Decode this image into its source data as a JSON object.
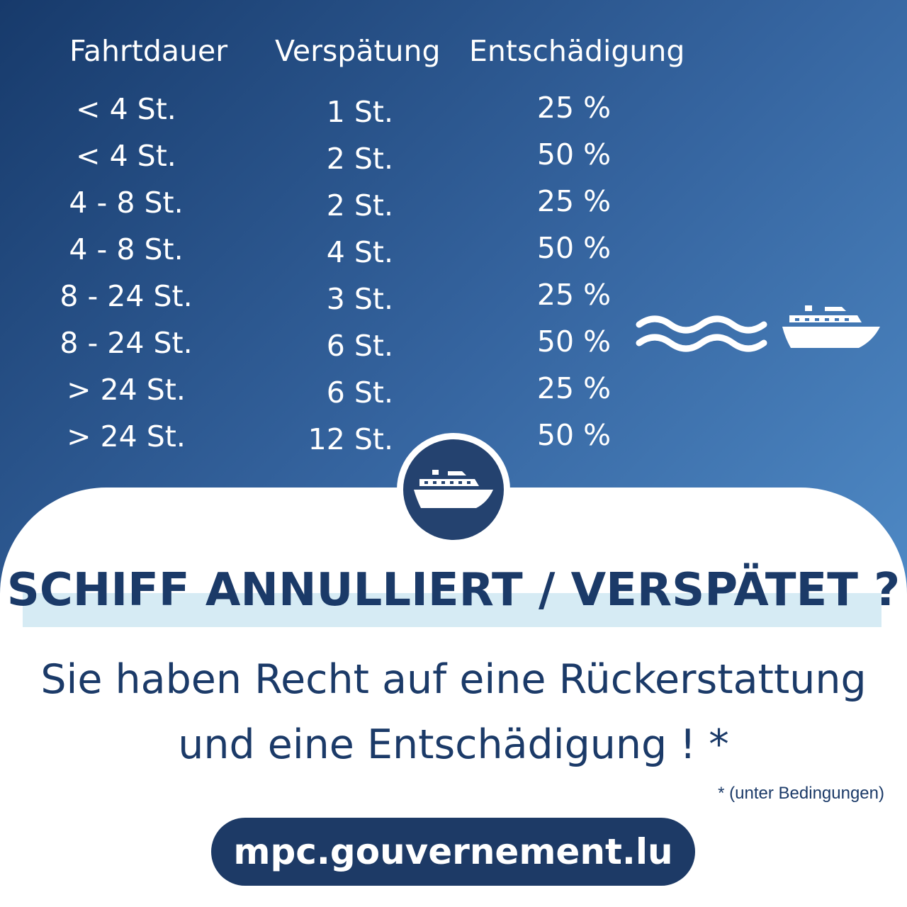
{
  "table": {
    "headers": [
      "Fahrtdauer",
      "Verspätung",
      "Entschädigung"
    ],
    "rows": [
      [
        "< 4 St.",
        "1 St.",
        "25 %"
      ],
      [
        "< 4 St.",
        "2 St.",
        "50 %"
      ],
      [
        "4 - 8 St.",
        "2 St.",
        "25 %"
      ],
      [
        "4 - 8 St.",
        "4 St.",
        "50 %"
      ],
      [
        "8 - 24 St.",
        "3 St.",
        "25 %"
      ],
      [
        "8 - 24 St.",
        "6 St.",
        "50 %"
      ],
      [
        "> 24 St.",
        "6 St.",
        "25 %"
      ],
      [
        "> 24 St.",
        "12 St.",
        "50 %"
      ]
    ]
  },
  "icons": {
    "waves": "waves-icon",
    "ship": "cruise-ship-icon"
  },
  "headline": "SCHIFF ANNULLIERT / VERSPÄTET ?",
  "subtitle_line1": "Sie haben Recht auf eine Rückerstattung",
  "subtitle_line2": "und eine Entschädigung ! *",
  "footnote": "* (unter Bedingungen)",
  "url": "mpc.gouvernement.lu",
  "colors": {
    "navy": "#1b3a68",
    "gradient_start": "#173a6b",
    "gradient_end": "#5a9ad6",
    "highlight": "#d6ebf4",
    "badge": "#24426f"
  }
}
